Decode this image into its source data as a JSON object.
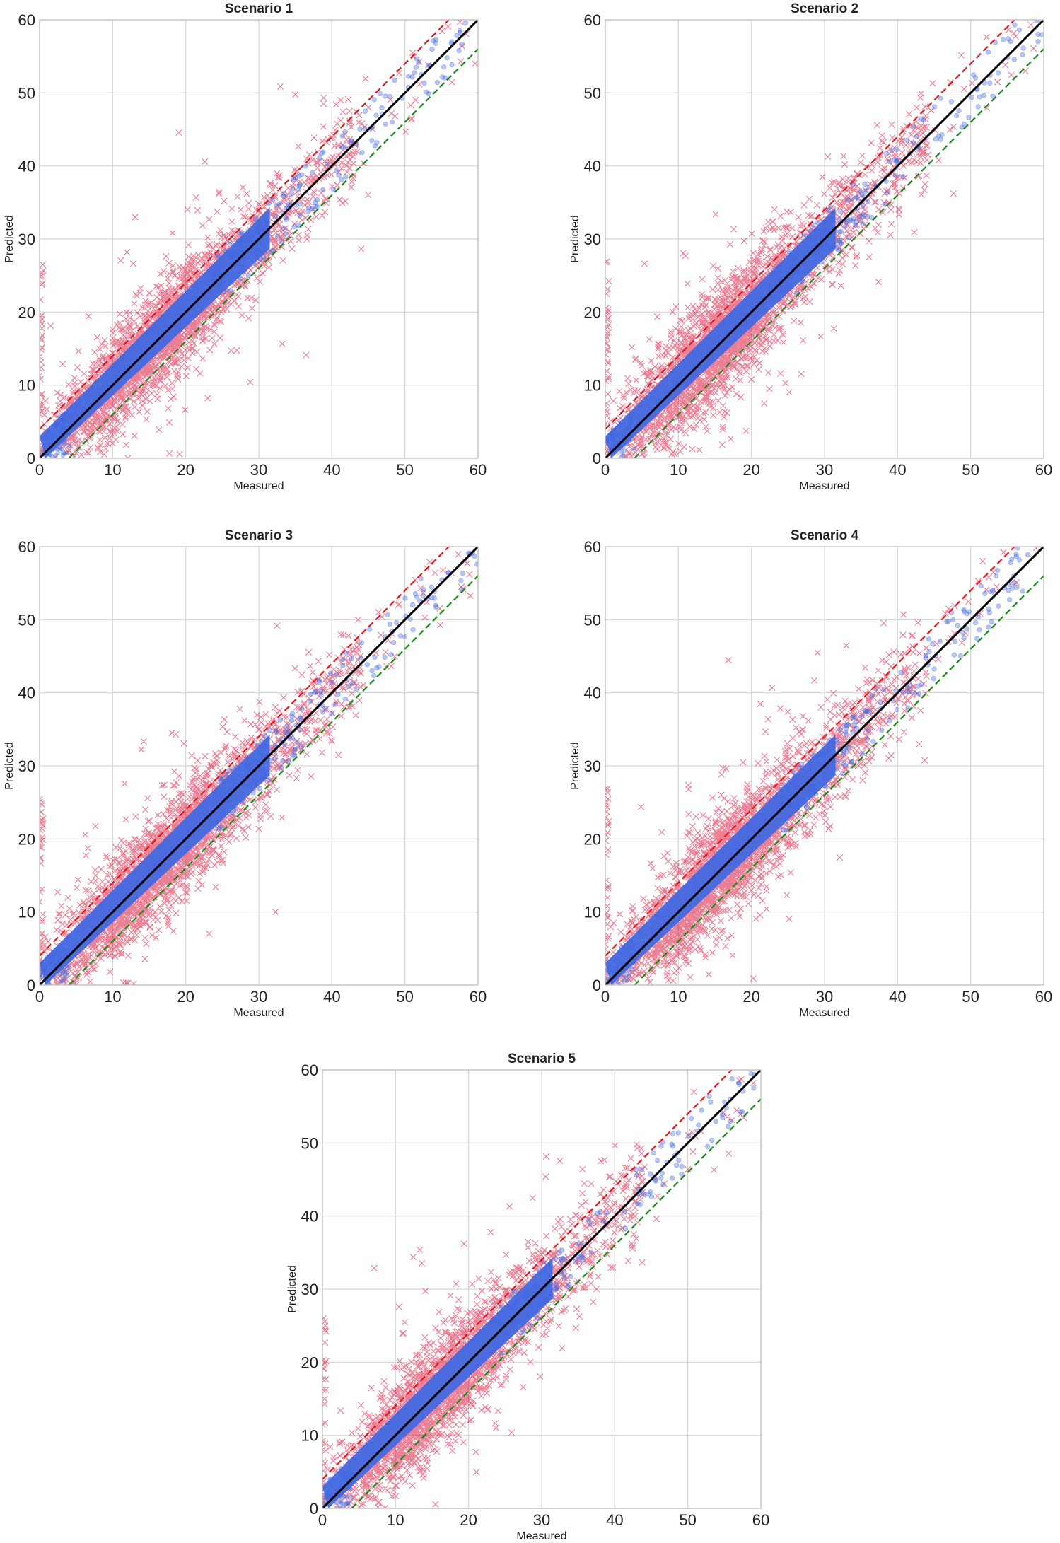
{
  "colors": {
    "outside_band": "#DC143C",
    "inside_band": "#4169E1",
    "identity_line": "#000000",
    "upper_bound": "#E31A1C",
    "lower_bound": "#1A8A1A",
    "grid": "#D5D5D5"
  },
  "chart_data": [
    {
      "type": "scatter",
      "title": "Scenario 1",
      "xlabel": "Measured",
      "ylabel": "Predicted",
      "xlim": [
        0,
        60
      ],
      "ylim": [
        0,
        60
      ],
      "xticks": [
        "0",
        "10",
        "20",
        "30",
        "40",
        "50",
        "60"
      ],
      "yticks": [
        "0",
        "10",
        "20",
        "30",
        "40",
        "50",
        "60"
      ],
      "series": [
        {
          "name": "outside band",
          "marker": "x",
          "color": "#DC143C",
          "spread": 3.2
        },
        {
          "name": "within band",
          "marker": "o",
          "color": "#4169E1",
          "spread": 2.2
        }
      ],
      "reference_lines": [
        {
          "name": "1:1 line",
          "style": "solid",
          "color": "#000000",
          "x": [
            0,
            60
          ],
          "y": [
            0,
            60
          ]
        },
        {
          "name": "upper bound",
          "style": "dashed",
          "color": "#E31A1C",
          "x": [
            0,
            56
          ],
          "y": [
            4,
            60
          ]
        },
        {
          "name": "lower bound",
          "style": "dashed",
          "color": "#1A8A1A",
          "x": [
            4,
            60
          ],
          "y": [
            0,
            56
          ]
        }
      ]
    },
    {
      "type": "scatter",
      "title": "Scenario 2",
      "xlabel": "Measured",
      "ylabel": "Predicted",
      "xlim": [
        0,
        60
      ],
      "ylim": [
        0,
        60
      ],
      "xticks": [
        "0",
        "10",
        "20",
        "30",
        "40",
        "50",
        "60"
      ],
      "yticks": [
        "0",
        "10",
        "20",
        "30",
        "40",
        "50",
        "60"
      ],
      "series": [
        {
          "name": "outside band",
          "marker": "x",
          "color": "#DC143C",
          "spread": 3.6
        },
        {
          "name": "within band",
          "marker": "o",
          "color": "#4169E1",
          "spread": 2.2
        }
      ],
      "reference_lines": [
        {
          "name": "1:1 line",
          "style": "solid",
          "color": "#000000",
          "x": [
            0,
            60
          ],
          "y": [
            0,
            60
          ]
        },
        {
          "name": "upper bound",
          "style": "dashed",
          "color": "#E31A1C",
          "x": [
            0,
            56
          ],
          "y": [
            4,
            60
          ]
        },
        {
          "name": "lower bound",
          "style": "dashed",
          "color": "#1A8A1A",
          "x": [
            4,
            60
          ],
          "y": [
            0,
            56
          ]
        }
      ]
    },
    {
      "type": "scatter",
      "title": "Scenario 3",
      "xlabel": "Measured",
      "ylabel": "Predicted",
      "xlim": [
        0,
        60
      ],
      "ylim": [
        0,
        60
      ],
      "xticks": [
        "0",
        "10",
        "20",
        "30",
        "40",
        "50",
        "60"
      ],
      "yticks": [
        "0",
        "10",
        "20",
        "30",
        "40",
        "50",
        "60"
      ],
      "series": [
        {
          "name": "outside band",
          "marker": "x",
          "color": "#DC143C",
          "spread": 3.4
        },
        {
          "name": "within band",
          "marker": "o",
          "color": "#4169E1",
          "spread": 2.2
        }
      ],
      "reference_lines": [
        {
          "name": "1:1 line",
          "style": "solid",
          "color": "#000000",
          "x": [
            0,
            60
          ],
          "y": [
            0,
            60
          ]
        },
        {
          "name": "upper bound",
          "style": "dashed",
          "color": "#E31A1C",
          "x": [
            0,
            56
          ],
          "y": [
            4,
            60
          ]
        },
        {
          "name": "lower bound",
          "style": "dashed",
          "color": "#1A8A1A",
          "x": [
            4,
            60
          ],
          "y": [
            0,
            56
          ]
        }
      ]
    },
    {
      "type": "scatter",
      "title": "Scenario 4",
      "xlabel": "Measured",
      "ylabel": "Predicted",
      "xlim": [
        0,
        60
      ],
      "ylim": [
        0,
        60
      ],
      "xticks": [
        "0",
        "10",
        "20",
        "30",
        "40",
        "50",
        "60"
      ],
      "yticks": [
        "0",
        "10",
        "20",
        "30",
        "40",
        "50",
        "60"
      ],
      "series": [
        {
          "name": "outside band",
          "marker": "x",
          "color": "#DC143C",
          "spread": 3.5
        },
        {
          "name": "within band",
          "marker": "o",
          "color": "#4169E1",
          "spread": 2.2
        }
      ],
      "reference_lines": [
        {
          "name": "1:1 line",
          "style": "solid",
          "color": "#000000",
          "x": [
            0,
            60
          ],
          "y": [
            0,
            60
          ]
        },
        {
          "name": "upper bound",
          "style": "dashed",
          "color": "#E31A1C",
          "x": [
            0,
            56
          ],
          "y": [
            4,
            60
          ]
        },
        {
          "name": "lower bound",
          "style": "dashed",
          "color": "#1A8A1A",
          "x": [
            4,
            60
          ],
          "y": [
            0,
            56
          ]
        }
      ]
    },
    {
      "type": "scatter",
      "title": "Scenario 5",
      "xlabel": "Measured",
      "ylabel": "Predicted",
      "xlim": [
        0,
        60
      ],
      "ylim": [
        0,
        60
      ],
      "xticks": [
        "0",
        "10",
        "20",
        "30",
        "40",
        "50",
        "60"
      ],
      "yticks": [
        "0",
        "10",
        "20",
        "30",
        "40",
        "50",
        "60"
      ],
      "series": [
        {
          "name": "outside band",
          "marker": "x",
          "color": "#DC143C",
          "spread": 3.5
        },
        {
          "name": "within band",
          "marker": "o",
          "color": "#4169E1",
          "spread": 2.2
        }
      ],
      "reference_lines": [
        {
          "name": "1:1 line",
          "style": "solid",
          "color": "#000000",
          "x": [
            0,
            60
          ],
          "y": [
            0,
            60
          ]
        },
        {
          "name": "upper bound",
          "style": "dashed",
          "color": "#E31A1C",
          "x": [
            0,
            56
          ],
          "y": [
            4,
            60
          ]
        },
        {
          "name": "lower bound",
          "style": "dashed",
          "color": "#1A8A1A",
          "x": [
            4,
            60
          ],
          "y": [
            0,
            56
          ]
        }
      ]
    }
  ]
}
